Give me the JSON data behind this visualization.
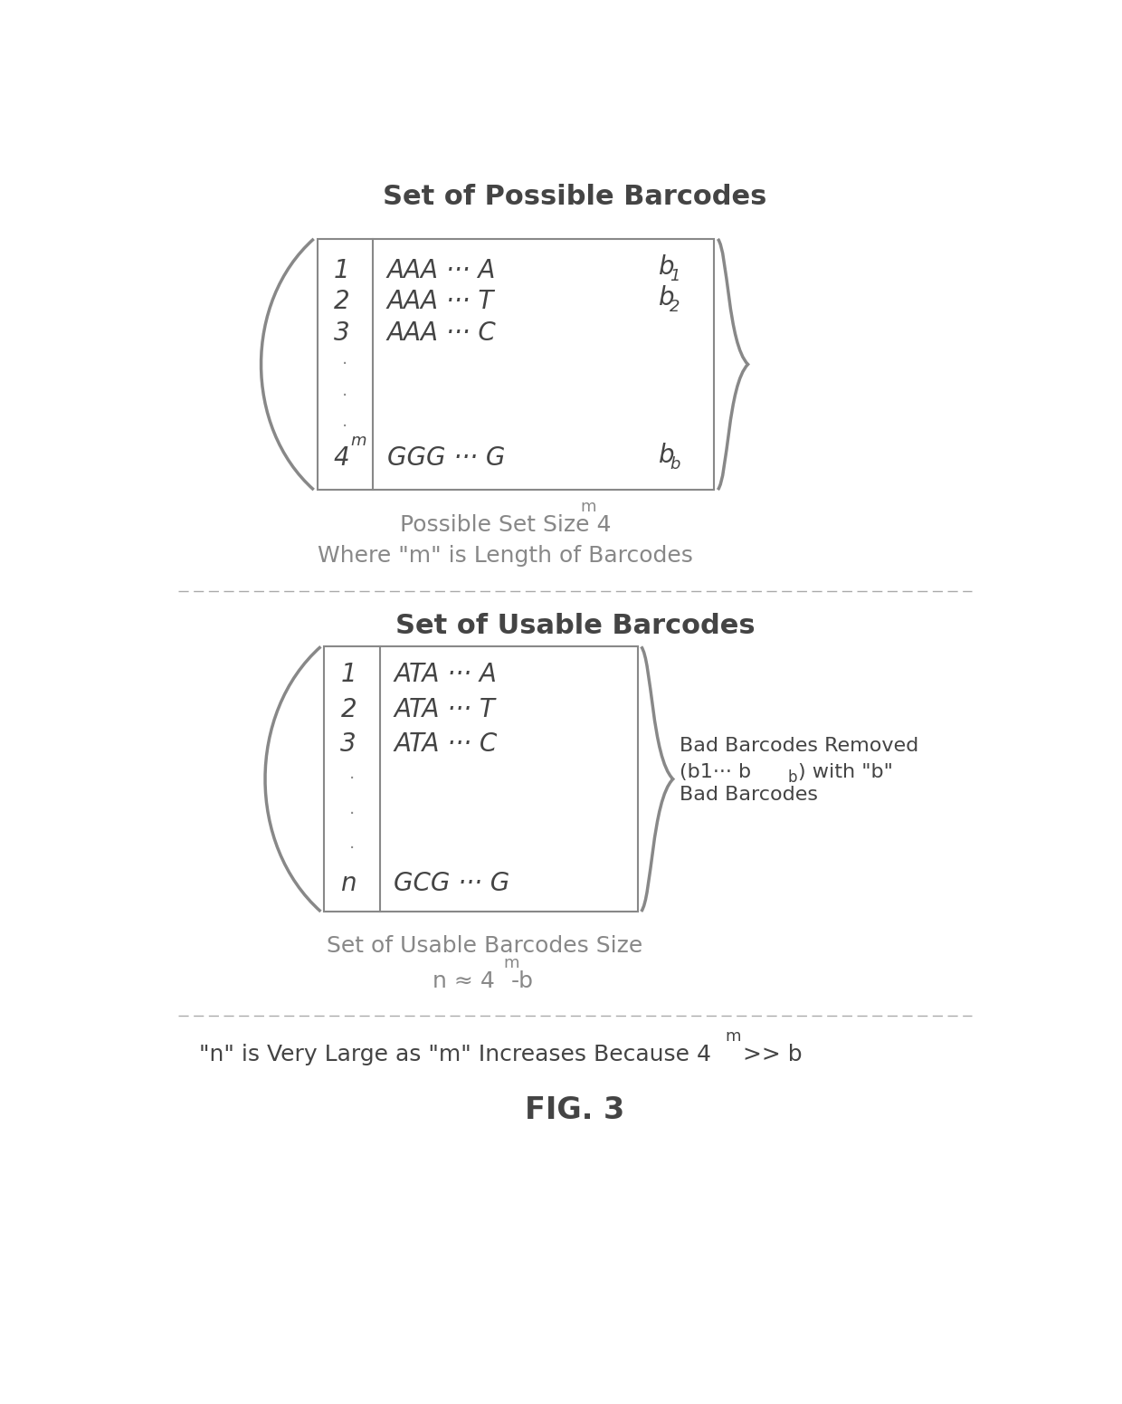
{
  "bg_color": "#ffffff",
  "text_color": "#444444",
  "title1": "Set of Possible Barcodes",
  "title2": "Set of Usable Barcodes",
  "footer": "FIG. 3",
  "section1_caption1": "Possible Set Size 4",
  "section1_caption1_sup": "m",
  "section1_caption2": "Where \"m\" is Length of Barcodes",
  "section2_caption1": "Set of Usable Barcodes Size",
  "bottom_note_pre": "\"n\" is Very Large as \"m\" Increases Because 4",
  "bottom_note_sup": "m",
  "bottom_note_post": " >> b",
  "annotation_line1": "Bad Barcodes Removed",
  "annotation_line2": "(b1··· b",
  "annotation_line2b": "b",
  "annotation_line2c": ") with \"b\"",
  "annotation_line3": "Bad Barcodes",
  "matrix1_rows": [
    {
      "idx": "1",
      "content": "AAA ··· A",
      "right": "b",
      "right_sub": "1"
    },
    {
      "idx": "2",
      "content": "AAA ··· T",
      "right": "b",
      "right_sub": "2"
    },
    {
      "idx": "3",
      "content": "AAA ··· C",
      "right": "",
      "right_sub": ""
    },
    {
      "idx": "⋅",
      "content": "",
      "right": "",
      "right_sub": ""
    },
    {
      "idx": "⋅",
      "content": "",
      "right": "",
      "right_sub": ""
    },
    {
      "idx": "⋅",
      "content": "",
      "right": "",
      "right_sub": ""
    },
    {
      "idx": "4",
      "content": "GGG ··· G",
      "right": "b",
      "right_sub": "b",
      "idx_sup": "m"
    }
  ],
  "matrix2_rows": [
    {
      "idx": "1",
      "content": "ATA ··· A"
    },
    {
      "idx": "2",
      "content": "ATA ··· T"
    },
    {
      "idx": "3",
      "content": "ATA ··· C"
    },
    {
      "idx": "⋅",
      "content": ""
    },
    {
      "idx": "⋅",
      "content": ""
    },
    {
      "idx": "⋅",
      "content": ""
    },
    {
      "idx": "n",
      "content": "GCG ··· G"
    }
  ]
}
